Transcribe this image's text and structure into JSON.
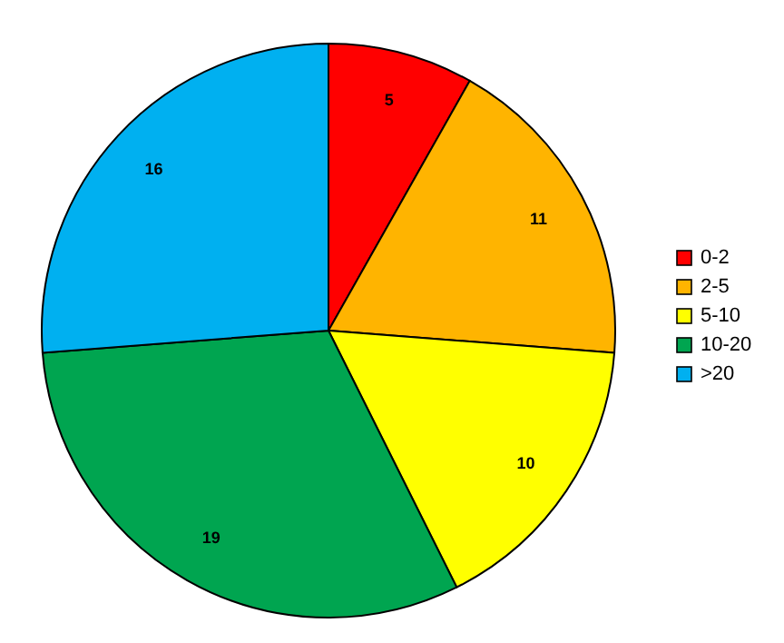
{
  "chart_data": {
    "type": "pie",
    "categories": [
      "0-2",
      "2-5",
      "5-10",
      "10-20",
      ">20"
    ],
    "values": [
      5,
      11,
      10,
      19,
      16
    ],
    "colors": [
      "#ff0000",
      "#ffb400",
      "#ffff00",
      "#00a550",
      "#00b0f0"
    ],
    "data_labels": true,
    "legend": "right"
  }
}
